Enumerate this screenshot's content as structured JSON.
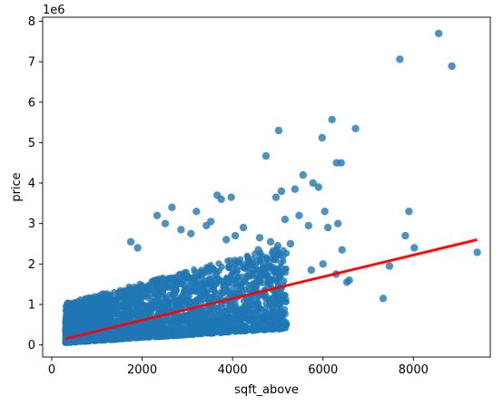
{
  "chart_data": {
    "type": "scatter",
    "title": "",
    "xlabel": "sqft_above",
    "ylabel": "price",
    "y_offset_text": "1e6",
    "xlim": [
      -200,
      9700
    ],
    "ylim": [
      -0.3,
      8.1
    ],
    "x_ticks": [
      0,
      2000,
      4000,
      6000,
      8000
    ],
    "y_ticks": [
      0,
      1,
      2,
      3,
      4,
      5,
      6,
      7,
      8
    ],
    "grid": false,
    "legend": "none",
    "point_color": "#1f77b4",
    "regression_color": "#ff0000",
    "y_units": "millions (1e6)",
    "regression_line": {
      "x": [
        290,
        9410
      ],
      "y": [
        0.15,
        2.6
      ]
    },
    "series": [
      {
        "x": [
          8560,
          7700,
          8850,
          6200,
          6720,
          5020,
          6400,
          6300,
          4740,
          5980,
          5560,
          5780,
          5900,
          5080,
          4960,
          5380,
          6040,
          6330,
          6110,
          5470,
          5160,
          7900,
          7820,
          7470,
          8020,
          6420,
          5280,
          4600,
          5680,
          5000,
          6000,
          9410,
          7330,
          6580,
          4890,
          4570,
          3970,
          3750,
          2660,
          3660,
          3200,
          2330,
          2510,
          4240,
          4450,
          3860,
          1750,
          1900,
          3080,
          2860,
          3420,
          3520,
          4060,
          4840,
          5110,
          5740,
          6290,
          6530
        ],
        "y": [
          7.7,
          7.06,
          6.89,
          5.57,
          5.35,
          5.3,
          4.5,
          4.5,
          4.67,
          5.12,
          4.2,
          4.0,
          3.9,
          3.8,
          3.65,
          3.85,
          3.3,
          3.0,
          2.9,
          3.2,
          3.1,
          3.3,
          2.7,
          1.95,
          2.4,
          2.35,
          2.5,
          2.65,
          2.95,
          2.45,
          2.0,
          2.29,
          1.15,
          1.6,
          2.15,
          2.35,
          3.65,
          3.6,
          3.4,
          3.7,
          3.3,
          3.2,
          3.0,
          2.9,
          2.0,
          2.6,
          2.55,
          2.4,
          2.75,
          2.85,
          2.95,
          3.05,
          2.7,
          2.55,
          2.2,
          1.85,
          1.75,
          1.55
        ]
      }
    ],
    "dense_cloud": {
      "x_range": [
        300,
        5200
      ],
      "y_at_x_low": [
        0.05,
        0.9
      ],
      "y_at_x_high": [
        0.4,
        2.2
      ]
    }
  }
}
